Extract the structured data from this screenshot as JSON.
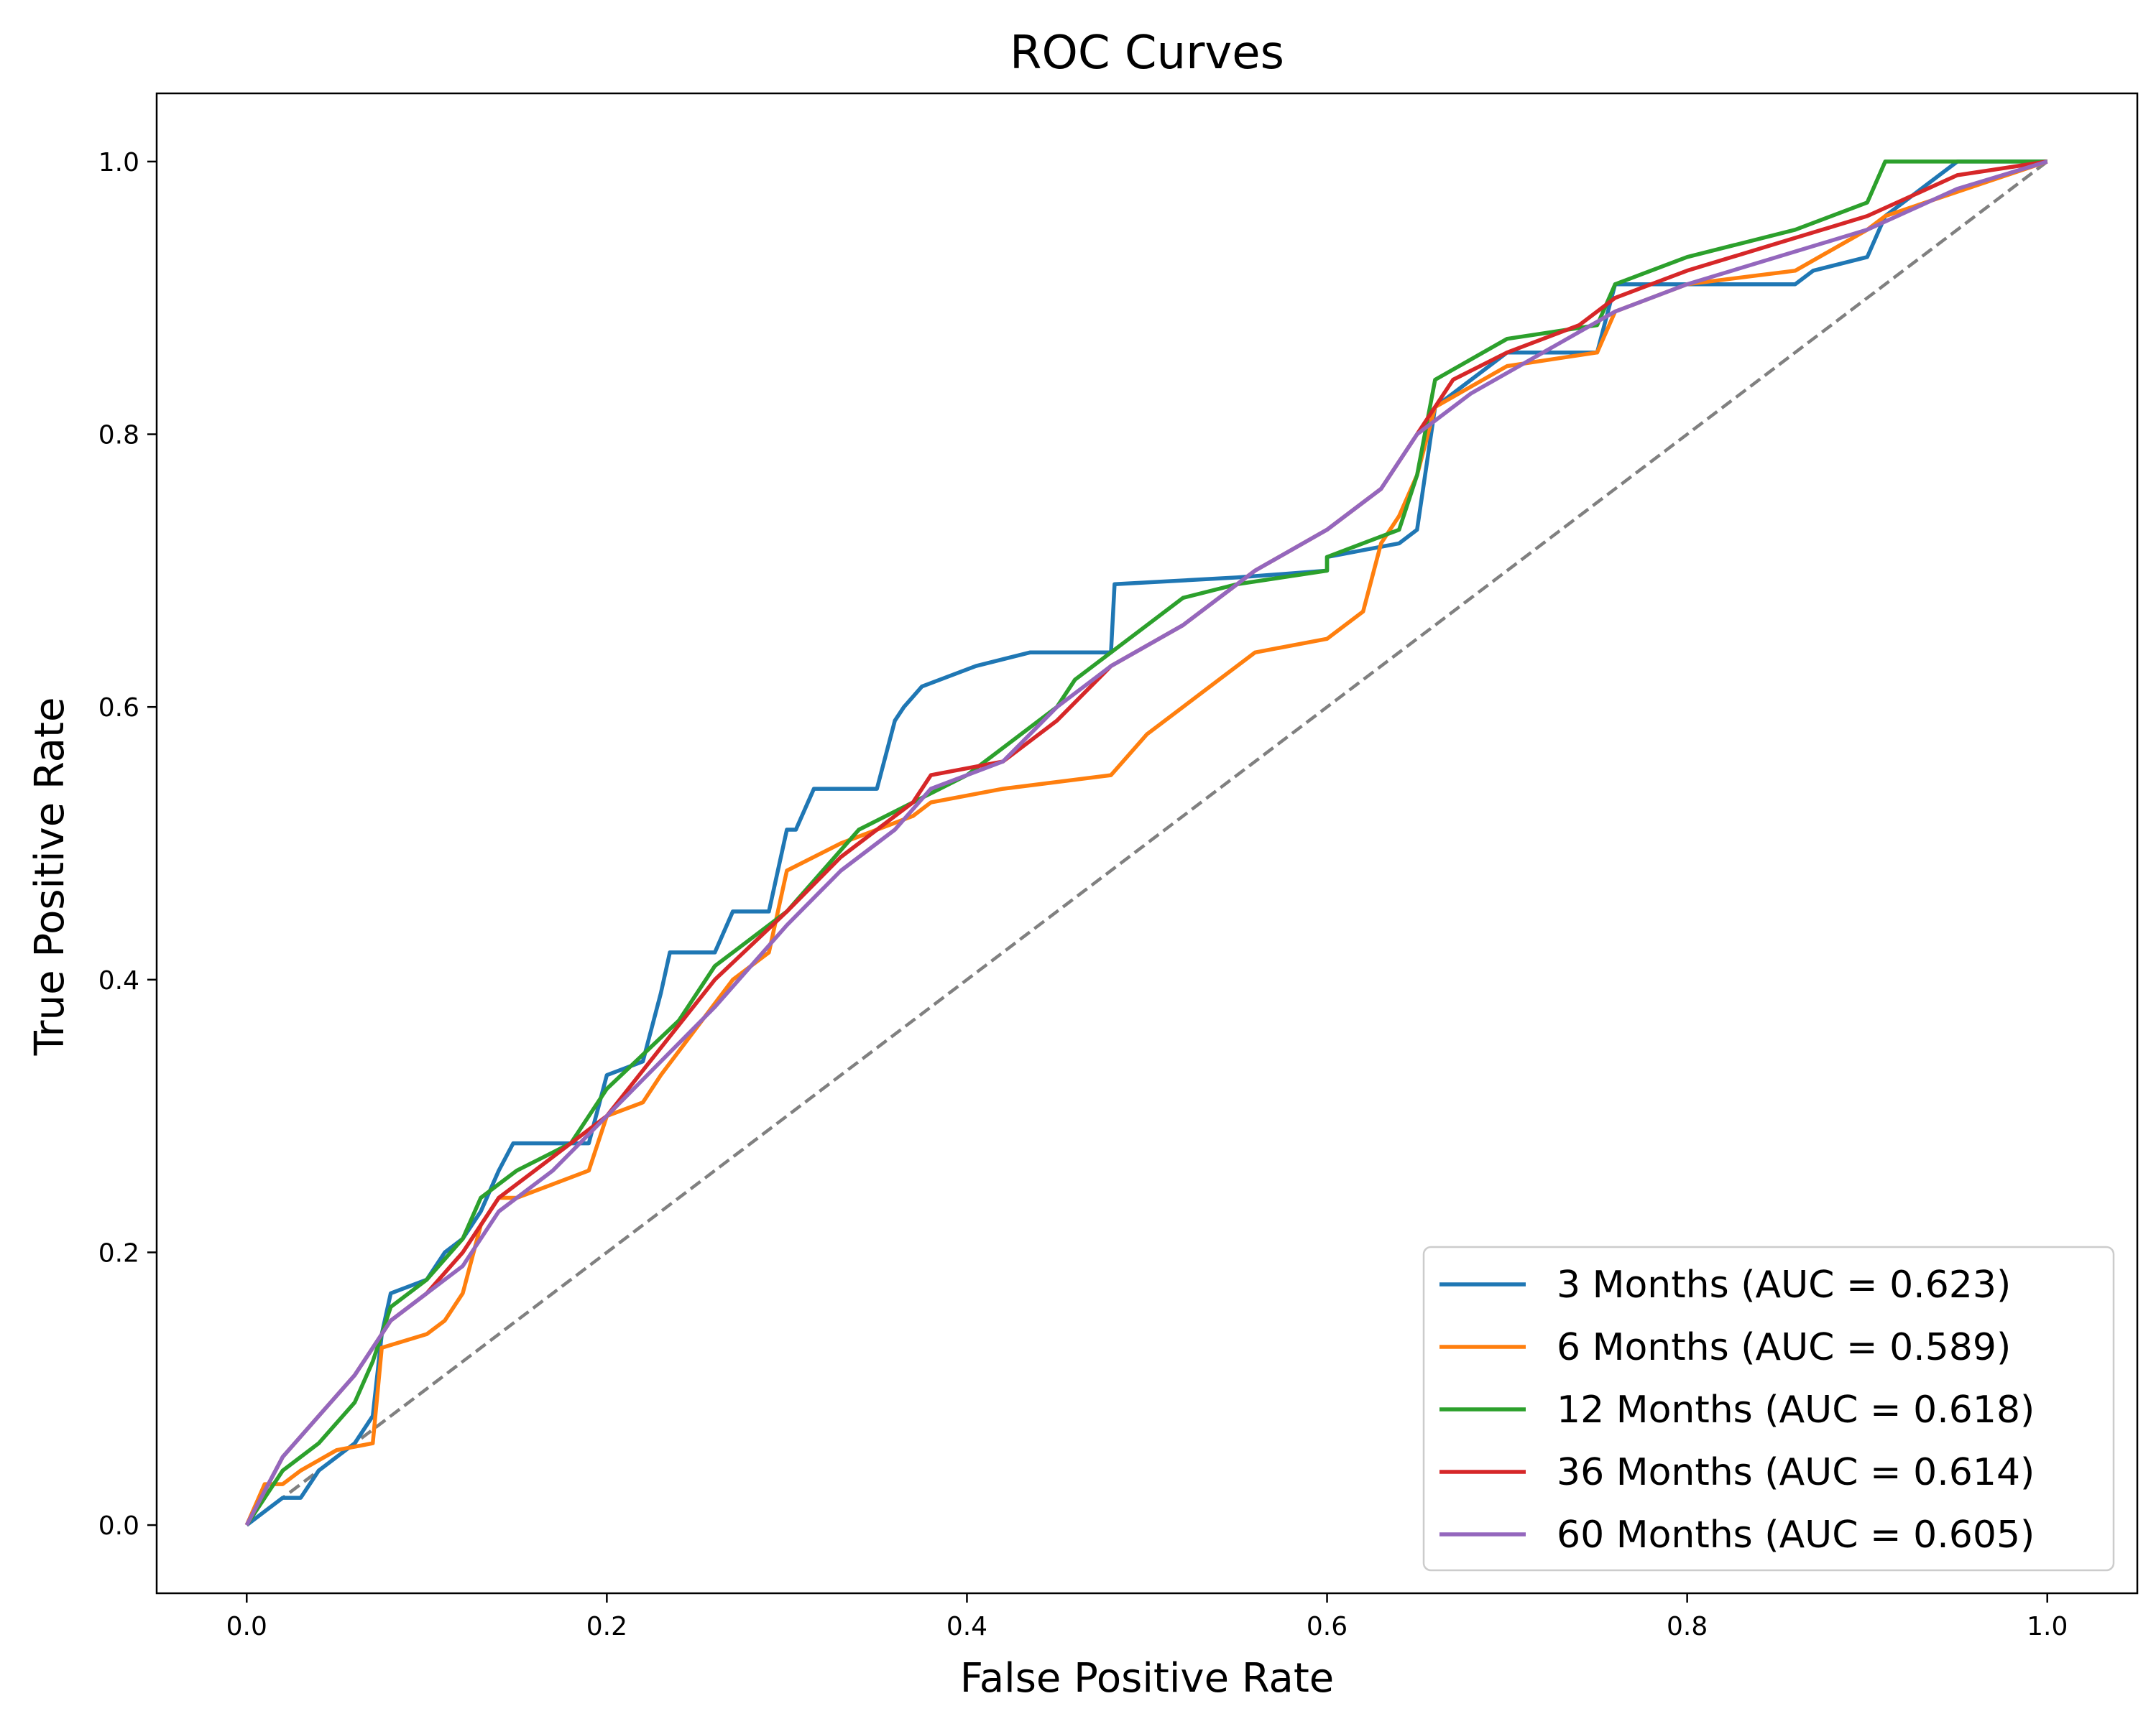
{
  "chart_data": {
    "type": "line",
    "title": "ROC Curves",
    "xlabel": "False Positive Rate",
    "ylabel": "True Positive Rate",
    "xlim": [
      -0.05,
      1.05
    ],
    "ylim": [
      -0.05,
      1.05
    ],
    "xticks": [
      "0.0",
      "0.2",
      "0.4",
      "0.6",
      "0.8",
      "1.0"
    ],
    "yticks": [
      "0.0",
      "0.2",
      "0.4",
      "0.6",
      "0.8",
      "1.0"
    ],
    "grid": false,
    "legend_position": "lower-right",
    "reference_line": {
      "x": [
        0,
        1
      ],
      "y": [
        0,
        1
      ],
      "style": "dashed",
      "color": "#808080"
    },
    "series": [
      {
        "name": "3 Months (AUC = 0.623)",
        "color": "#1f77b4",
        "x": [
          0,
          0.01,
          0.02,
          0.03,
          0.04,
          0.05,
          0.06,
          0.07,
          0.075,
          0.08,
          0.1,
          0.11,
          0.12,
          0.13,
          0.14,
          0.148,
          0.19,
          0.2,
          0.22,
          0.23,
          0.235,
          0.26,
          0.27,
          0.29,
          0.3,
          0.305,
          0.315,
          0.35,
          0.36,
          0.365,
          0.375,
          0.405,
          0.435,
          0.48,
          0.482,
          0.55,
          0.6,
          0.6,
          0.64,
          0.65,
          0.66,
          0.7,
          0.75,
          0.76,
          0.84,
          0.86,
          0.87,
          0.9,
          0.91,
          0.95,
          1.0
        ],
        "y": [
          0,
          0.01,
          0.02,
          0.02,
          0.04,
          0.05,
          0.06,
          0.08,
          0.14,
          0.17,
          0.18,
          0.2,
          0.21,
          0.23,
          0.26,
          0.28,
          0.28,
          0.33,
          0.34,
          0.39,
          0.42,
          0.42,
          0.45,
          0.45,
          0.51,
          0.51,
          0.54,
          0.54,
          0.59,
          0.6,
          0.615,
          0.63,
          0.64,
          0.64,
          0.69,
          0.695,
          0.7,
          0.71,
          0.72,
          0.73,
          0.82,
          0.86,
          0.86,
          0.91,
          0.91,
          0.91,
          0.92,
          0.93,
          0.96,
          1.0,
          1.0
        ]
      },
      {
        "name": "6 Months (AUC = 0.589)",
        "color": "#ff7f0e",
        "x": [
          0,
          0.01,
          0.02,
          0.03,
          0.05,
          0.07,
          0.075,
          0.1,
          0.11,
          0.12,
          0.13,
          0.14,
          0.15,
          0.19,
          0.2,
          0.22,
          0.23,
          0.27,
          0.29,
          0.3,
          0.33,
          0.37,
          0.38,
          0.42,
          0.45,
          0.48,
          0.5,
          0.52,
          0.54,
          0.56,
          0.6,
          0.62,
          0.63,
          0.64,
          0.65,
          0.66,
          0.7,
          0.75,
          0.76,
          0.8,
          0.86,
          0.9,
          0.91,
          1.0
        ],
        "y": [
          0,
          0.03,
          0.03,
          0.04,
          0.055,
          0.06,
          0.13,
          0.14,
          0.15,
          0.17,
          0.22,
          0.24,
          0.24,
          0.26,
          0.3,
          0.31,
          0.33,
          0.4,
          0.42,
          0.48,
          0.5,
          0.52,
          0.53,
          0.54,
          0.545,
          0.55,
          0.58,
          0.6,
          0.62,
          0.64,
          0.65,
          0.67,
          0.72,
          0.74,
          0.77,
          0.82,
          0.85,
          0.86,
          0.89,
          0.91,
          0.92,
          0.95,
          0.96,
          1.0
        ]
      },
      {
        "name": "12 Months (AUC = 0.618)",
        "color": "#2ca02c",
        "x": [
          0,
          0.01,
          0.02,
          0.04,
          0.06,
          0.07,
          0.075,
          0.08,
          0.1,
          0.12,
          0.13,
          0.14,
          0.15,
          0.18,
          0.2,
          0.24,
          0.26,
          0.27,
          0.3,
          0.34,
          0.4,
          0.45,
          0.46,
          0.5,
          0.52,
          0.55,
          0.6,
          0.6,
          0.64,
          0.65,
          0.66,
          0.7,
          0.75,
          0.76,
          0.8,
          0.86,
          0.9,
          0.91,
          1.0
        ],
        "y": [
          0,
          0.02,
          0.04,
          0.06,
          0.09,
          0.12,
          0.14,
          0.16,
          0.18,
          0.21,
          0.24,
          0.25,
          0.26,
          0.28,
          0.32,
          0.37,
          0.41,
          0.42,
          0.45,
          0.51,
          0.55,
          0.6,
          0.62,
          0.66,
          0.68,
          0.69,
          0.7,
          0.71,
          0.73,
          0.77,
          0.84,
          0.87,
          0.88,
          0.91,
          0.93,
          0.95,
          0.97,
          1.0,
          1.0
        ]
      },
      {
        "name": "36 Months (AUC = 0.614)",
        "color": "#d62728",
        "x": [
          0,
          0.02,
          0.04,
          0.06,
          0.08,
          0.1,
          0.12,
          0.14,
          0.17,
          0.2,
          0.23,
          0.26,
          0.3,
          0.33,
          0.35,
          0.37,
          0.38,
          0.42,
          0.45,
          0.48,
          0.52,
          0.56,
          0.6,
          0.63,
          0.65,
          0.67,
          0.7,
          0.74,
          0.76,
          0.8,
          0.85,
          0.9,
          0.95,
          1.0
        ],
        "y": [
          0,
          0.05,
          0.08,
          0.11,
          0.15,
          0.17,
          0.2,
          0.24,
          0.27,
          0.3,
          0.35,
          0.4,
          0.45,
          0.49,
          0.51,
          0.53,
          0.55,
          0.56,
          0.59,
          0.63,
          0.66,
          0.7,
          0.73,
          0.76,
          0.8,
          0.84,
          0.86,
          0.88,
          0.9,
          0.92,
          0.94,
          0.96,
          0.99,
          1.0
        ]
      },
      {
        "name": "60 Months (AUC = 0.605)",
        "color": "#9467bd",
        "x": [
          0,
          0.02,
          0.04,
          0.06,
          0.08,
          0.1,
          0.12,
          0.14,
          0.17,
          0.2,
          0.23,
          0.26,
          0.3,
          0.33,
          0.36,
          0.38,
          0.42,
          0.45,
          0.48,
          0.52,
          0.56,
          0.6,
          0.63,
          0.65,
          0.68,
          0.72,
          0.76,
          0.8,
          0.85,
          0.9,
          0.95,
          1.0
        ],
        "y": [
          0,
          0.05,
          0.08,
          0.11,
          0.15,
          0.17,
          0.19,
          0.23,
          0.26,
          0.3,
          0.34,
          0.38,
          0.44,
          0.48,
          0.51,
          0.54,
          0.56,
          0.6,
          0.63,
          0.66,
          0.7,
          0.73,
          0.76,
          0.8,
          0.83,
          0.86,
          0.89,
          0.91,
          0.93,
          0.95,
          0.98,
          1.0
        ]
      }
    ]
  }
}
